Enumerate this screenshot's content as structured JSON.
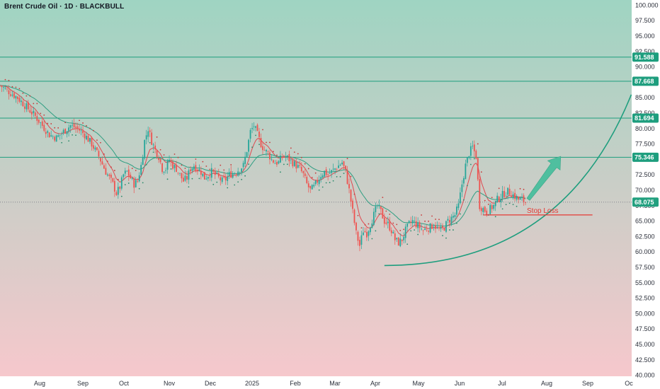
{
  "header": {
    "title": "Brent Crude Oil · 1D · BLACKBULL"
  },
  "colors": {
    "bg_top": "#9fd4c2",
    "bg_bottom": "#f6c8cc",
    "up": "#26a69a",
    "down": "#ef5350",
    "level": "#1e9e7e",
    "ema_fast": "#e0484f",
    "ema_slow": "#2f9e82",
    "psar": "#c83a3a",
    "stop": "#e53935",
    "arrow": "#4fbf9f",
    "price_line": "#787b86"
  },
  "chart_data": {
    "type": "candlestick",
    "symbol": "Brent Crude Oil",
    "timeframe": "1D",
    "broker": "BLACKBULL",
    "y_axis": {
      "range": [
        39.5,
        100.5
      ],
      "ticks": [
        "100.000",
        "97.500",
        "95.000",
        "92.500",
        "90.000",
        "87.500",
        "85.000",
        "82.500",
        "80.000",
        "77.500",
        "75.000",
        "72.500",
        "70.000",
        "67.500",
        "65.000",
        "62.500",
        "60.000",
        "57.500",
        "55.000",
        "52.500",
        "50.000",
        "47.500",
        "45.000",
        "42.500",
        "40.000"
      ]
    },
    "x_axis": {
      "labels": [
        "Aug",
        "Sep",
        "Oct",
        "Nov",
        "Dec",
        "2025",
        "Feb",
        "Mar",
        "Apr",
        "May",
        "Jun",
        "Jul",
        "Aug",
        "Sep",
        "Oc"
      ]
    },
    "current_price": 68.075,
    "levels": [
      {
        "value": 91.588,
        "label": "91.588"
      },
      {
        "value": 87.668,
        "label": "87.668"
      },
      {
        "value": 81.694,
        "label": "81.694"
      },
      {
        "value": 75.346,
        "label": "75.346"
      }
    ],
    "current_label": "68.075",
    "stop_loss": {
      "value": 66.0,
      "label": "Stop Loss"
    },
    "price_path": [
      [
        0,
        87.0
      ],
      [
        5,
        86.0
      ],
      [
        10,
        85.0
      ],
      [
        15,
        83.5
      ],
      [
        20,
        82.0
      ],
      [
        24,
        80.5
      ],
      [
        28,
        79.0
      ],
      [
        32,
        78.5
      ],
      [
        36,
        79.5
      ],
      [
        40,
        80.5
      ],
      [
        44,
        80.0
      ],
      [
        48,
        79.0
      ],
      [
        52,
        77.5
      ],
      [
        56,
        75.5
      ],
      [
        60,
        73.0
      ],
      [
        64,
        71.0
      ],
      [
        66,
        69.5
      ],
      [
        68,
        70.5
      ],
      [
        70,
        72.5
      ],
      [
        72,
        73.0
      ],
      [
        74,
        72.0
      ],
      [
        76,
        71.0
      ],
      [
        78,
        71.5
      ],
      [
        80,
        74.0
      ],
      [
        82,
        78.0
      ],
      [
        84,
        80.0
      ],
      [
        86,
        78.0
      ],
      [
        88,
        76.5
      ],
      [
        90,
        75.5
      ],
      [
        92,
        73.5
      ],
      [
        94,
        73.5
      ],
      [
        96,
        75.0
      ],
      [
        98,
        74.0
      ],
      [
        100,
        73.5
      ],
      [
        102,
        72.5
      ],
      [
        104,
        71.5
      ],
      [
        106,
        72.0
      ],
      [
        108,
        73.5
      ],
      [
        110,
        74.0
      ],
      [
        112,
        73.5
      ],
      [
        114,
        73.0
      ],
      [
        116,
        72.0
      ],
      [
        118,
        72.5
      ],
      [
        120,
        73.0
      ],
      [
        122,
        72.5
      ],
      [
        124,
        72.0
      ],
      [
        126,
        71.5
      ],
      [
        128,
        71.8
      ],
      [
        130,
        72.5
      ],
      [
        132,
        72.8
      ],
      [
        134,
        73.0
      ],
      [
        136,
        73.5
      ],
      [
        138,
        74.0
      ],
      [
        140,
        76.5
      ],
      [
        142,
        79.5
      ],
      [
        144,
        80.5
      ],
      [
        146,
        79.0
      ],
      [
        148,
        77.5
      ],
      [
        150,
        76.5
      ],
      [
        152,
        76.0
      ],
      [
        154,
        75.0
      ],
      [
        156,
        74.5
      ],
      [
        158,
        74.5
      ],
      [
        160,
        75.5
      ],
      [
        162,
        75.5
      ],
      [
        164,
        75.0
      ],
      [
        166,
        74.5
      ],
      [
        168,
        74.0
      ],
      [
        170,
        73.5
      ],
      [
        172,
        72.5
      ],
      [
        174,
        71.0
      ],
      [
        176,
        70.0
      ],
      [
        178,
        70.5
      ],
      [
        180,
        71.5
      ],
      [
        182,
        72.5
      ],
      [
        184,
        73.0
      ],
      [
        186,
        72.5
      ],
      [
        188,
        73.0
      ],
      [
        190,
        73.5
      ],
      [
        192,
        74.0
      ],
      [
        194,
        74.5
      ],
      [
        196,
        73.0
      ],
      [
        198,
        70.0
      ],
      [
        200,
        66.5
      ],
      [
        202,
        63.0
      ],
      [
        204,
        61.0
      ],
      [
        206,
        63.5
      ],
      [
        208,
        63.0
      ],
      [
        210,
        64.5
      ],
      [
        212,
        66.0
      ],
      [
        214,
        67.5
      ],
      [
        216,
        66.5
      ],
      [
        218,
        65.0
      ],
      [
        220,
        64.5
      ],
      [
        222,
        63.5
      ],
      [
        224,
        62.0
      ],
      [
        226,
        61.5
      ],
      [
        228,
        62.0
      ],
      [
        230,
        63.5
      ],
      [
        232,
        64.5
      ],
      [
        234,
        65.0
      ],
      [
        236,
        64.5
      ],
      [
        238,
        64.0
      ],
      [
        240,
        63.5
      ],
      [
        242,
        63.8
      ],
      [
        244,
        64.0
      ],
      [
        246,
        64.5
      ],
      [
        248,
        63.8
      ],
      [
        250,
        63.5
      ],
      [
        252,
        64.0
      ],
      [
        254,
        65.0
      ],
      [
        256,
        65.5
      ],
      [
        258,
        66.0
      ],
      [
        260,
        67.5
      ],
      [
        262,
        71.0
      ],
      [
        264,
        74.0
      ],
      [
        266,
        76.0
      ],
      [
        268,
        77.0
      ],
      [
        270,
        75.5
      ],
      [
        272,
        67.5
      ],
      [
        274,
        67.0
      ],
      [
        276,
        66.5
      ],
      [
        278,
        67.0
      ],
      [
        280,
        67.5
      ],
      [
        282,
        68.5
      ],
      [
        284,
        69.0
      ],
      [
        286,
        69.5
      ],
      [
        288,
        69.8
      ],
      [
        290,
        69.5
      ],
      [
        292,
        69.0
      ],
      [
        294,
        68.5
      ],
      [
        296,
        68.5
      ],
      [
        298,
        68.075
      ]
    ],
    "projection": {
      "from": [
        298,
        68.075
      ],
      "to": [
        318,
        75.5
      ]
    },
    "parabola": {
      "from": [
        218,
        57.8
      ],
      "to": [
        358,
        85.5
      ]
    }
  }
}
